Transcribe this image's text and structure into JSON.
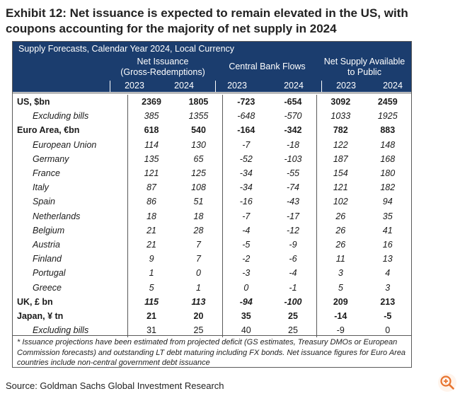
{
  "title": "Exhibit 12: Net issuance is expected to remain elevated in the US, with coupons accounting for the majority of net supply in 2024",
  "header": {
    "subtitle": "Supply Forecasts, Calendar Year 2024, Local Currency",
    "group1_line1": "Net Issuance",
    "group1_line2": "(Gross-Redemptions)",
    "group2": "Central Bank Flows",
    "group3_line1": "Net Supply Available",
    "group3_line2": "to Public",
    "years": [
      "2023",
      "2024",
      "2023",
      "2024",
      "2023",
      "2024"
    ]
  },
  "rows": [
    {
      "label": "US, $bn",
      "values": [
        "2369",
        "1805",
        "-723",
        "-654",
        "3092",
        "2459"
      ]
    },
    {
      "label": "Excluding bills",
      "values": [
        "385",
        "1355",
        "-648",
        "-570",
        "1033",
        "1925"
      ]
    },
    {
      "label": "Euro Area, €bn",
      "values": [
        "618",
        "540",
        "-164",
        "-342",
        "782",
        "883"
      ]
    },
    {
      "label": "European Union",
      "values": [
        "114",
        "130",
        "-7",
        "-18",
        "122",
        "148"
      ]
    },
    {
      "label": "Germany",
      "values": [
        "135",
        "65",
        "-52",
        "-103",
        "187",
        "168"
      ]
    },
    {
      "label": "France",
      "values": [
        "121",
        "125",
        "-34",
        "-55",
        "154",
        "180"
      ]
    },
    {
      "label": "Italy",
      "values": [
        "87",
        "108",
        "-34",
        "-74",
        "121",
        "182"
      ]
    },
    {
      "label": "Spain",
      "values": [
        "86",
        "51",
        "-16",
        "-43",
        "102",
        "94"
      ]
    },
    {
      "label": "Netherlands",
      "values": [
        "18",
        "18",
        "-7",
        "-17",
        "26",
        "35"
      ]
    },
    {
      "label": "Belgium",
      "values": [
        "21",
        "28",
        "-4",
        "-12",
        "26",
        "41"
      ]
    },
    {
      "label": "Austria",
      "values": [
        "21",
        "7",
        "-5",
        "-9",
        "26",
        "16"
      ]
    },
    {
      "label": "Finland",
      "values": [
        "9",
        "7",
        "-2",
        "-6",
        "11",
        "13"
      ]
    },
    {
      "label": "Portugal",
      "values": [
        "1",
        "0",
        "-3",
        "-4",
        "3",
        "4"
      ]
    },
    {
      "label": "Greece",
      "values": [
        "5",
        "1",
        "0",
        "-1",
        "5",
        "3"
      ]
    },
    {
      "label": "UK, £ bn",
      "values": [
        "115",
        "113",
        "-94",
        "-100",
        "209",
        "213"
      ]
    },
    {
      "label": "Japan, ¥ tn",
      "values": [
        "21",
        "20",
        "35",
        "25",
        "-14",
        "-5"
      ]
    },
    {
      "label": "Excluding bills",
      "values": [
        "31",
        "25",
        "40",
        "25",
        "-9",
        "0"
      ]
    }
  ],
  "footnote": "* Issuance projections have been estimated from projected deficit (GS estimates, Treasury DMOs or European Commission forecasts) and outstanding LT debt maturing including FX bonds. Net issuance figures for Euro Area countries include non-central government debt issuance",
  "source": "Source: Goldman Sachs Global Investment Research",
  "zoom_icon": "zoom-in-icon",
  "colors": {
    "header_bg": "#1b3d6e",
    "accent": "#e8742f"
  }
}
